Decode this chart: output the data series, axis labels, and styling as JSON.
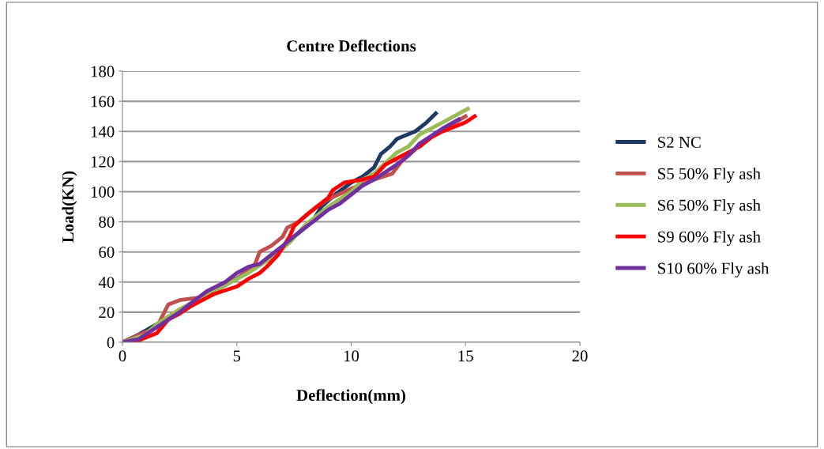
{
  "chart_data": {
    "type": "line",
    "title": "Centre Deflections",
    "xlabel": "Deflection(mm)",
    "ylabel": "Load(KN)",
    "xlim": [
      0,
      20
    ],
    "xticks": [
      0,
      5,
      10,
      15,
      20
    ],
    "ylim": [
      0,
      180
    ],
    "yticks": [
      0,
      20,
      40,
      60,
      80,
      100,
      120,
      140,
      160,
      180
    ],
    "grid": "y",
    "legend": "right",
    "marker": "none",
    "line_style": "solid",
    "series": [
      {
        "name": "S2 NC",
        "color": "#1f3864",
        "x": [
          0,
          0.7,
          1.5,
          2.5,
          3.5,
          4.5,
          5.5,
          6.5,
          7.5,
          8.3,
          8.7,
          9.3,
          10,
          10.5,
          11,
          11.3,
          11.7,
          12,
          12.8,
          13.3,
          13.7
        ],
        "values": [
          0,
          5,
          12,
          20,
          30,
          38,
          47,
          56,
          70,
          80,
          90,
          98,
          106,
          110,
          116,
          125,
          130,
          135,
          140,
          146,
          152
        ]
      },
      {
        "name": "S5 50% Fly ash",
        "color": "#c0504d",
        "x": [
          0,
          1.5,
          2,
          2.5,
          3.5,
          4,
          5,
          5.8,
          6,
          6.5,
          7,
          7.2,
          7.7,
          8.5,
          9,
          10,
          11,
          11.8,
          12.2,
          12.8,
          13,
          14,
          15
        ],
        "values": [
          0,
          10,
          25,
          28,
          30,
          35,
          42,
          52,
          60,
          64,
          70,
          76,
          80,
          90,
          95,
          102,
          108,
          112,
          120,
          128,
          132,
          141,
          150
        ]
      },
      {
        "name": "S6 50% Fly ash",
        "color": "#9bbb59",
        "x": [
          0,
          1,
          1.5,
          2.5,
          3.5,
          4.5,
          5.5,
          6.5,
          7.3,
          8,
          9,
          10,
          10.5,
          11,
          12,
          12.5,
          13,
          14,
          15.1
        ],
        "values": [
          0,
          5,
          12,
          22,
          30,
          38,
          46,
          56,
          66,
          78,
          90,
          100,
          108,
          112,
          126,
          130,
          138,
          146,
          155
        ]
      },
      {
        "name": "S9 60% Fly ash",
        "color": "#ff0000",
        "x": [
          0.5,
          1.5,
          2,
          2.5,
          3,
          3.5,
          4,
          5,
          5.5,
          6,
          6.3,
          6.8,
          7.3,
          7.5,
          8,
          8.5,
          9,
          9.2,
          9.7,
          10.5,
          11,
          11.5,
          12,
          13,
          13.5,
          14,
          15,
          15.4
        ],
        "values": [
          0,
          6,
          15,
          19,
          24,
          28,
          32,
          37,
          42,
          46,
          50,
          58,
          70,
          77,
          84,
          90,
          96,
          101,
          106,
          108,
          110,
          118,
          122,
          130,
          136,
          140,
          146,
          150
        ]
      },
      {
        "name": "S10 60% Fly ash",
        "color": "#7030a0",
        "x": [
          0,
          0.7,
          1.5,
          2.5,
          3,
          3.7,
          4.5,
          5,
          5.5,
          6,
          6.5,
          7,
          7.8,
          8.5,
          9,
          9.5,
          10,
          10.5,
          11,
          12,
          12.5,
          13,
          13.5,
          14,
          14.7
        ],
        "values": [
          0,
          2,
          10,
          20,
          26,
          34,
          40,
          46,
          50,
          52,
          58,
          64,
          74,
          82,
          88,
          92,
          98,
          104,
          108,
          118,
          124,
          132,
          137,
          142,
          148
        ]
      }
    ]
  }
}
